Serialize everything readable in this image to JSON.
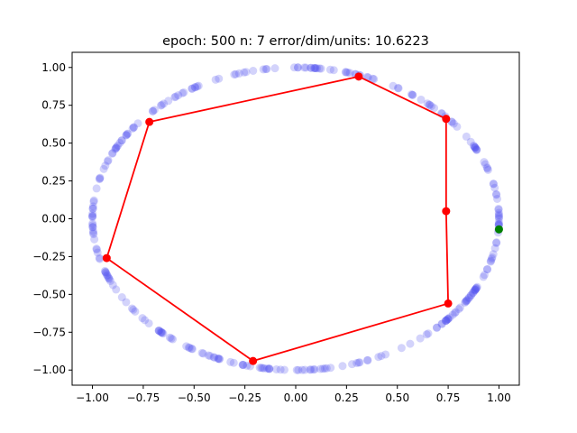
{
  "chart_data": {
    "type": "scatter",
    "title": "epoch: 500 n: 7 error/dim/units: 10.6223",
    "xlabel": "",
    "ylabel": "",
    "xlim": [
      -1.1,
      1.1
    ],
    "ylim": [
      -1.1,
      1.1
    ],
    "grid": false,
    "x_ticks": [
      -1.0,
      -0.75,
      -0.5,
      -0.25,
      0.0,
      0.25,
      0.5,
      0.75,
      1.0
    ],
    "y_ticks": [
      -1.0,
      -0.75,
      -0.5,
      -0.25,
      0.0,
      0.25,
      0.5,
      0.75,
      1.0
    ],
    "x_tick_labels": [
      "−1.00",
      "−0.75",
      "−0.50",
      "−0.25",
      "0.00",
      "0.25",
      "0.50",
      "0.75",
      "1.00"
    ],
    "y_tick_labels": [
      "−1.00",
      "−0.75",
      "−0.50",
      "−0.25",
      "0.00",
      "0.25",
      "0.50",
      "0.75",
      "1.00"
    ],
    "series": [
      {
        "kind": "scatter",
        "color": "#5050ee",
        "alpha": 0.25,
        "shape": "unit-circle samples",
        "count": 300
      },
      {
        "kind": "line",
        "color": "#ff0000",
        "closed": true,
        "marker": "circle",
        "points": [
          [
            0.31,
            0.94
          ],
          [
            0.74,
            0.66
          ],
          [
            0.74,
            0.05
          ],
          [
            0.75,
            -0.56
          ],
          [
            -0.21,
            -0.94
          ],
          [
            -0.93,
            -0.26
          ],
          [
            -0.72,
            0.64
          ]
        ]
      },
      {
        "kind": "scatter",
        "color": "#008000",
        "points": [
          [
            1.0,
            -0.07
          ]
        ]
      }
    ]
  }
}
